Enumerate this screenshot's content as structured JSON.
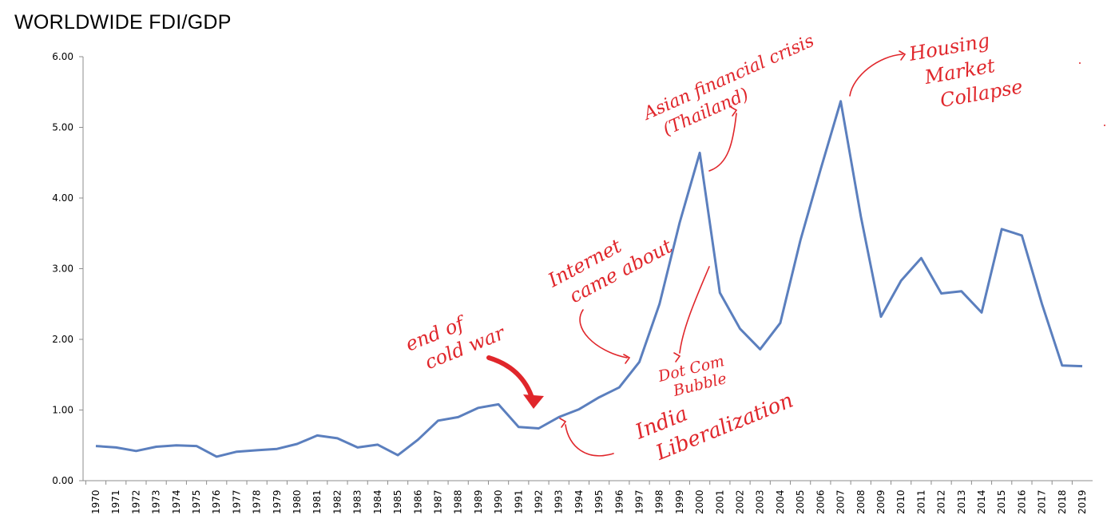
{
  "chart_data": {
    "type": "line",
    "title": "WORLDWIDE FDI/GDP",
    "xlabel": "",
    "ylabel": "",
    "ylim": [
      0,
      6
    ],
    "yticks": [
      "0.00",
      "1.00",
      "2.00",
      "3.00",
      "4.00",
      "5.00",
      "6.00"
    ],
    "grid": false,
    "categories": [
      "1970",
      "1971",
      "1972",
      "1973",
      "1974",
      "1975",
      "1976",
      "1977",
      "1978",
      "1979",
      "1980",
      "1981",
      "1982",
      "1983",
      "1984",
      "1985",
      "1986",
      "1987",
      "1988",
      "1989",
      "1990",
      "1991",
      "1992",
      "1993",
      "1994",
      "1995",
      "1996",
      "1997",
      "1998",
      "1999",
      "2000",
      "2001",
      "2002",
      "2003",
      "2004",
      "2005",
      "2006",
      "2007",
      "2008",
      "2009",
      "2010",
      "2011",
      "2012",
      "2013",
      "2014",
      "2015",
      "2016",
      "2017",
      "2018",
      "2019"
    ],
    "series": [
      {
        "values": [
          0.49,
          0.47,
          0.42,
          0.48,
          0.5,
          0.49,
          0.34,
          0.41,
          0.43,
          0.45,
          0.52,
          0.64,
          0.6,
          0.47,
          0.51,
          0.36,
          0.58,
          0.85,
          0.9,
          1.03,
          1.08,
          0.76,
          0.74,
          0.9,
          1.01,
          1.18,
          1.32,
          1.68,
          2.5,
          3.65,
          4.64,
          2.66,
          2.15,
          1.86,
          2.23,
          3.4,
          4.4,
          5.37,
          3.74,
          2.32,
          2.83,
          3.15,
          2.65,
          2.68,
          2.38,
          3.56,
          3.47,
          2.5,
          1.63,
          1.62
        ],
        "color": "#5b7fbe"
      }
    ],
    "annotations": [
      {
        "id": "cold-war",
        "lines": [
          "end of",
          "cold war"
        ]
      },
      {
        "id": "india",
        "lines": [
          "India",
          "Liberalization"
        ]
      },
      {
        "id": "internet",
        "lines": [
          "Internet",
          "came about"
        ]
      },
      {
        "id": "dotcom",
        "lines": [
          "Dot Com",
          "Bubble"
        ]
      },
      {
        "id": "asian",
        "lines": [
          "Asian financial crisis",
          "(Thailand)"
        ]
      },
      {
        "id": "housing",
        "lines": [
          "Housing",
          "Market",
          "Collapse"
        ]
      }
    ],
    "annotation_color": "#e0262b"
  }
}
